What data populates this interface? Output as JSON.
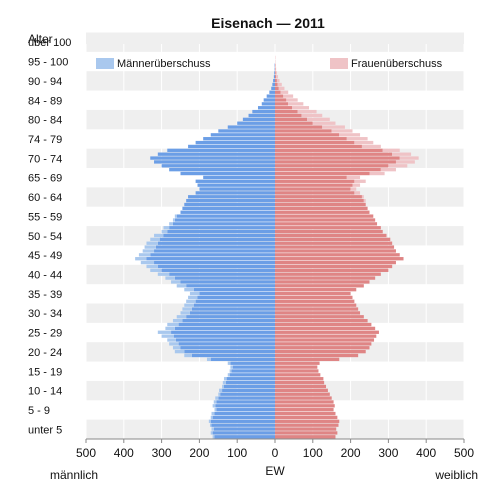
{
  "chart_data": {
    "type": "bar",
    "orientation": "horizontal-diverging",
    "title": "Eisenach — 2011",
    "ylabel": "Alter",
    "xlabel": "EW",
    "left_label": "männlich",
    "right_label": "weiblich",
    "xlim": [
      -500,
      500
    ],
    "xticks": [
      -500,
      -400,
      -300,
      -200,
      -100,
      0,
      100,
      200,
      300,
      400,
      500
    ],
    "xtick_labels": [
      "500",
      "400",
      "300",
      "200",
      "100",
      "0",
      "100",
      "200",
      "300",
      "400",
      "500"
    ],
    "age_groups": [
      "unter 5",
      "5 - 9",
      "10 - 14",
      "15 - 19",
      "20 - 24",
      "25 - 29",
      "30 - 34",
      "35 - 39",
      "40 - 44",
      "45 - 49",
      "50 - 54",
      "55 - 59",
      "60 - 64",
      "65 - 69",
      "70 - 74",
      "74 - 79",
      "80 - 84",
      "84 - 89",
      "90 - 94",
      "95 - 100",
      "über 100"
    ],
    "legend": [
      {
        "name": "Männerüberschuss",
        "color": "#a9c8ee",
        "position": "top-left"
      },
      {
        "name": "Frauenüberschuss",
        "color": "#efc3c6",
        "position": "top-right"
      }
    ],
    "colors": {
      "male": "#6b9ee6",
      "female": "#df8585",
      "male_surplus": "#a9c8ee",
      "female_surplus": "#efc3c6",
      "band": "#efefef"
    },
    "ages": [
      0,
      1,
      2,
      3,
      4,
      5,
      6,
      7,
      8,
      9,
      10,
      11,
      12,
      13,
      14,
      15,
      16,
      17,
      18,
      19,
      20,
      21,
      22,
      23,
      24,
      25,
      26,
      27,
      28,
      29,
      30,
      31,
      32,
      33,
      34,
      35,
      36,
      37,
      38,
      39,
      40,
      41,
      42,
      43,
      44,
      45,
      46,
      47,
      48,
      49,
      50,
      51,
      52,
      53,
      54,
      55,
      56,
      57,
      58,
      59,
      60,
      61,
      62,
      63,
      64,
      65,
      66,
      67,
      68,
      69,
      70,
      71,
      72,
      73,
      74,
      75,
      76,
      77,
      78,
      79,
      80,
      81,
      82,
      83,
      84,
      85,
      86,
      87,
      88,
      89,
      90,
      91,
      92,
      93,
      94,
      95,
      96,
      97,
      98,
      99,
      100
    ],
    "series": [
      {
        "name": "männlich",
        "values": [
          165,
          170,
          168,
          172,
          175,
          170,
          168,
          160,
          165,
          162,
          158,
          150,
          148,
          140,
          138,
          135,
          125,
          120,
          118,
          125,
          180,
          240,
          265,
          270,
          280,
          285,
          300,
          310,
          290,
          285,
          270,
          260,
          250,
          245,
          240,
          235,
          230,
          225,
          240,
          260,
          275,
          290,
          310,
          330,
          340,
          355,
          370,
          360,
          350,
          345,
          340,
          330,
          320,
          300,
          295,
          280,
          270,
          265,
          250,
          245,
          240,
          235,
          230,
          210,
          200,
          205,
          210,
          190,
          250,
          280,
          300,
          320,
          330,
          310,
          285,
          230,
          210,
          190,
          170,
          150,
          125,
          100,
          85,
          70,
          60,
          45,
          35,
          30,
          22,
          15,
          10,
          7,
          5,
          3,
          2,
          1,
          1,
          0,
          0,
          0,
          0
        ]
      },
      {
        "name": "weiblich",
        "values": [
          160,
          165,
          162,
          168,
          170,
          165,
          160,
          155,
          158,
          155,
          150,
          145,
          140,
          135,
          130,
          128,
          120,
          115,
          112,
          118,
          170,
          220,
          240,
          250,
          255,
          262,
          268,
          275,
          265,
          255,
          245,
          235,
          225,
          220,
          215,
          210,
          205,
          200,
          215,
          235,
          250,
          265,
          280,
          300,
          310,
          320,
          340,
          330,
          320,
          315,
          310,
          305,
          295,
          285,
          280,
          270,
          265,
          260,
          250,
          245,
          240,
          240,
          235,
          225,
          215,
          225,
          240,
          225,
          290,
          320,
          350,
          370,
          380,
          360,
          330,
          280,
          260,
          245,
          225,
          205,
          185,
          160,
          145,
          125,
          110,
          90,
          75,
          60,
          48,
          35,
          25,
          18,
          12,
          8,
          5,
          3,
          2,
          1,
          1,
          0,
          0
        ]
      }
    ]
  }
}
